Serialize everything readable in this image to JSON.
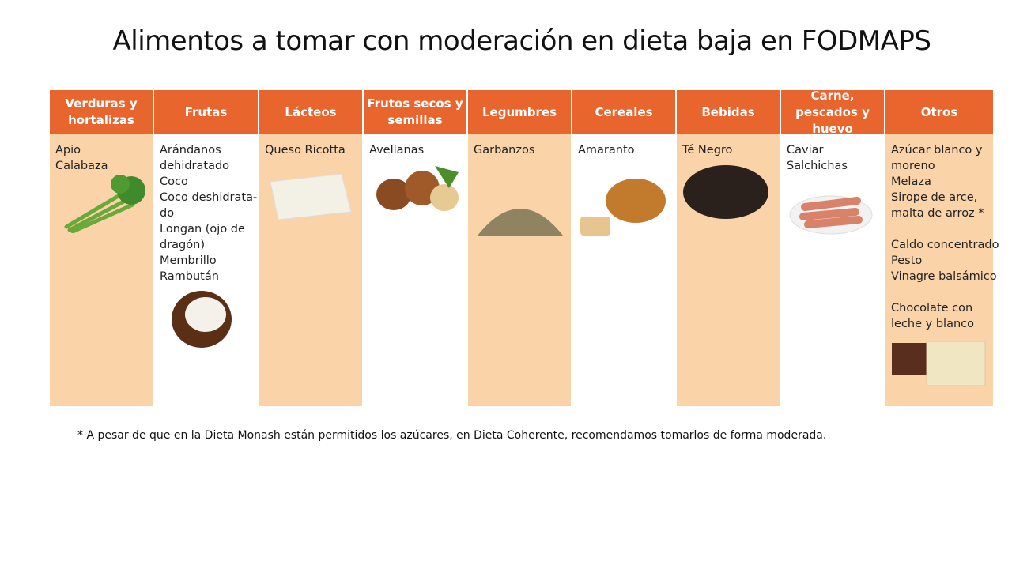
{
  "title": "Alimentos a tomar con moderación en dieta baja en FODMAPS",
  "columns": [
    {
      "header": "Verduras y hortalizas",
      "groups": [
        [
          "Apio",
          "Calabaza"
        ]
      ]
    },
    {
      "header": "Frutas",
      "groups": [
        [
          "Arándanos",
          "dehidratado",
          "Coco",
          "Coco deshidrata-",
          "do",
          "Longan (ojo de",
          "dragón)",
          "Membrillo",
          "Rambután"
        ]
      ]
    },
    {
      "header": "Lácteos",
      "groups": [
        [
          "Queso Ricotta"
        ]
      ]
    },
    {
      "header": "Frutos secos y semillas",
      "groups": [
        [
          "Avellanas"
        ]
      ]
    },
    {
      "header": "Legumbres",
      "groups": [
        [
          "Garbanzos"
        ]
      ]
    },
    {
      "header": "Cereales",
      "groups": [
        [
          "Amaranto"
        ]
      ]
    },
    {
      "header": "Bebidas",
      "groups": [
        [
          "Té Negro"
        ]
      ]
    },
    {
      "header": "Carne, pescados y huevo",
      "groups": [
        [
          "Caviar",
          "Salchichas"
        ]
      ]
    },
    {
      "header": "Otros",
      "groups": [
        [
          "Azúcar blanco y",
          "moreno",
          "Melaza",
          "Sirope de arce,",
          "malta de arroz *"
        ],
        [
          "Caldo concentrado",
          "Pesto",
          "Vinagre balsámico"
        ],
        [
          "Chocolate con",
          "leche y blanco"
        ]
      ]
    }
  ],
  "footnote": "* A pesar de que en la Dieta Monash están permitidos los azúcares, en Dieta Coherente, recomendamos tomarlos de forma moderada."
}
